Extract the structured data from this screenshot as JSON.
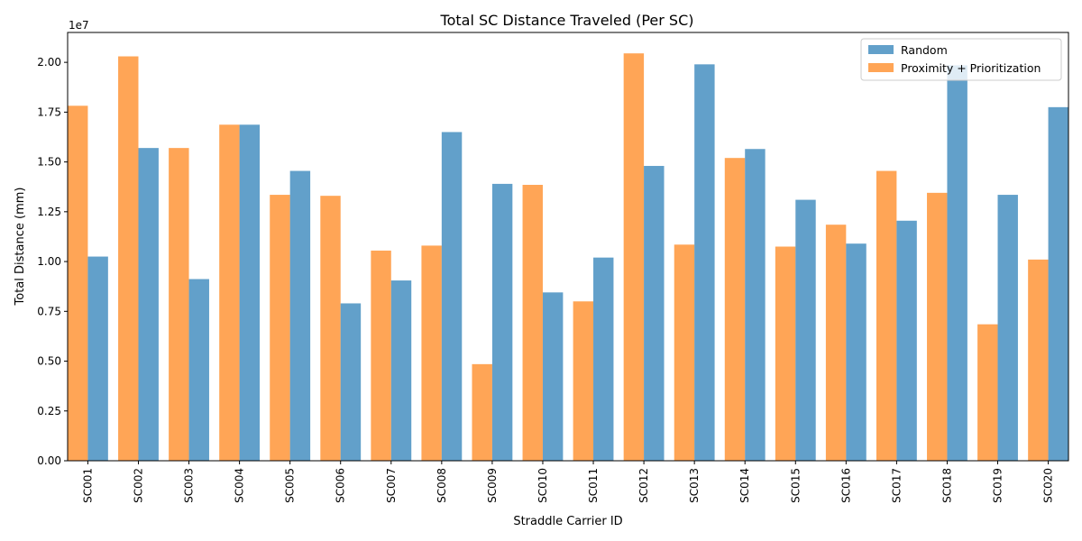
{
  "chart_data": {
    "type": "bar",
    "title": "Total SC Distance Traveled (Per SC)",
    "xlabel": "Straddle Carrier ID",
    "ylabel": "Total Distance (mm)",
    "y_offset_label": "1e7",
    "ylim": [
      0,
      21500000
    ],
    "yticks": [
      0,
      2500000,
      5000000,
      7500000,
      10000000,
      12500000,
      15000000,
      17500000,
      20000000
    ],
    "ytick_labels": [
      "0.00",
      "0.25",
      "0.50",
      "0.75",
      "1.00",
      "1.25",
      "1.50",
      "1.75",
      "2.00"
    ],
    "categories": [
      "SC001",
      "SC002",
      "SC003",
      "SC004",
      "SC005",
      "SC006",
      "SC007",
      "SC008",
      "SC009",
      "SC010",
      "SC011",
      "SC012",
      "SC013",
      "SC014",
      "SC015",
      "SC016",
      "SC017",
      "SC018",
      "SC019",
      "SC020"
    ],
    "series": [
      {
        "name": "Random",
        "color": "#1f77b4",
        "opacity": 0.7,
        "values": [
          10250000,
          15700000,
          9120000,
          16870000,
          14550000,
          7900000,
          9050000,
          16500000,
          13900000,
          8450000,
          10200000,
          14800000,
          19900000,
          15650000,
          13100000,
          10900000,
          12050000,
          19850000,
          13350000,
          17750000
        ]
      },
      {
        "name": "Proximity + Prioritization",
        "color": "#ff7f0e",
        "opacity": 0.7,
        "values": [
          17820000,
          20300000,
          15700000,
          16870000,
          13350000,
          13300000,
          10550000,
          10800000,
          4850000,
          13850000,
          8000000,
          20450000,
          10850000,
          15200000,
          10750000,
          11850000,
          14550000,
          13450000,
          6850000,
          10100000
        ]
      }
    ],
    "legend_position": "top-right",
    "grid": false
  }
}
